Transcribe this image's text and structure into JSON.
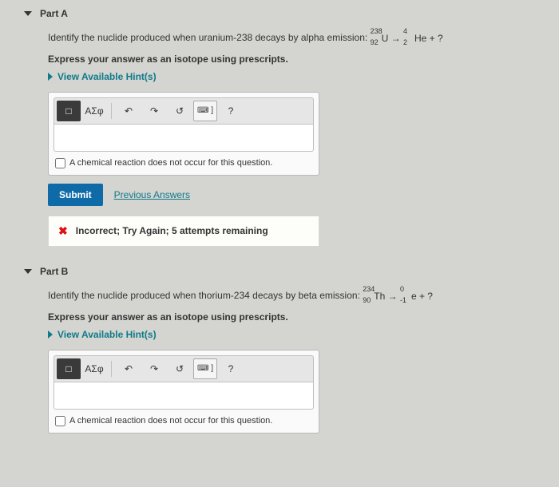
{
  "partA": {
    "label": "Part A",
    "question_prefix": "Identify the nuclide produced when uranium-238 decays by alpha emission:",
    "eq_u_sup": "238",
    "eq_u_sub": "92",
    "eq_u_sym": "U",
    "eq_he_sup": "4",
    "eq_he_sub": "2",
    "eq_he_sym": "He",
    "eq_tail": " + ?",
    "instruction": "Express your answer as an isotope using prescripts.",
    "hint": "View Available Hint(s)",
    "toolbar": {
      "template": "□",
      "greek": "ΑΣφ",
      "undo": "↶",
      "redo": "↷",
      "reset": "↺",
      "keyboard": "⌨ ]",
      "help": "?"
    },
    "no_reaction": "A chemical reaction does not occur for this question.",
    "submit": "Submit",
    "prev": "Previous Answers",
    "feedback": "Incorrect; Try Again; 5 attempts remaining"
  },
  "partB": {
    "label": "Part B",
    "question_prefix": "Identify the nuclide produced when thorium-234 decays by beta emission:",
    "eq_th_sup": "234",
    "eq_th_sub": "90",
    "eq_th_sym": "Th",
    "eq_e_sup": "0",
    "eq_e_sub": "-1",
    "eq_e_sym": "e",
    "eq_tail": " + ?",
    "instruction": "Express your answer as an isotope using prescripts.",
    "hint": "View Available Hint(s)",
    "toolbar": {
      "template": "□",
      "greek": "ΑΣφ",
      "undo": "↶",
      "redo": "↷",
      "reset": "↺",
      "keyboard": "⌨ ]",
      "help": "?"
    },
    "no_reaction": "A chemical reaction does not occur for this question."
  }
}
